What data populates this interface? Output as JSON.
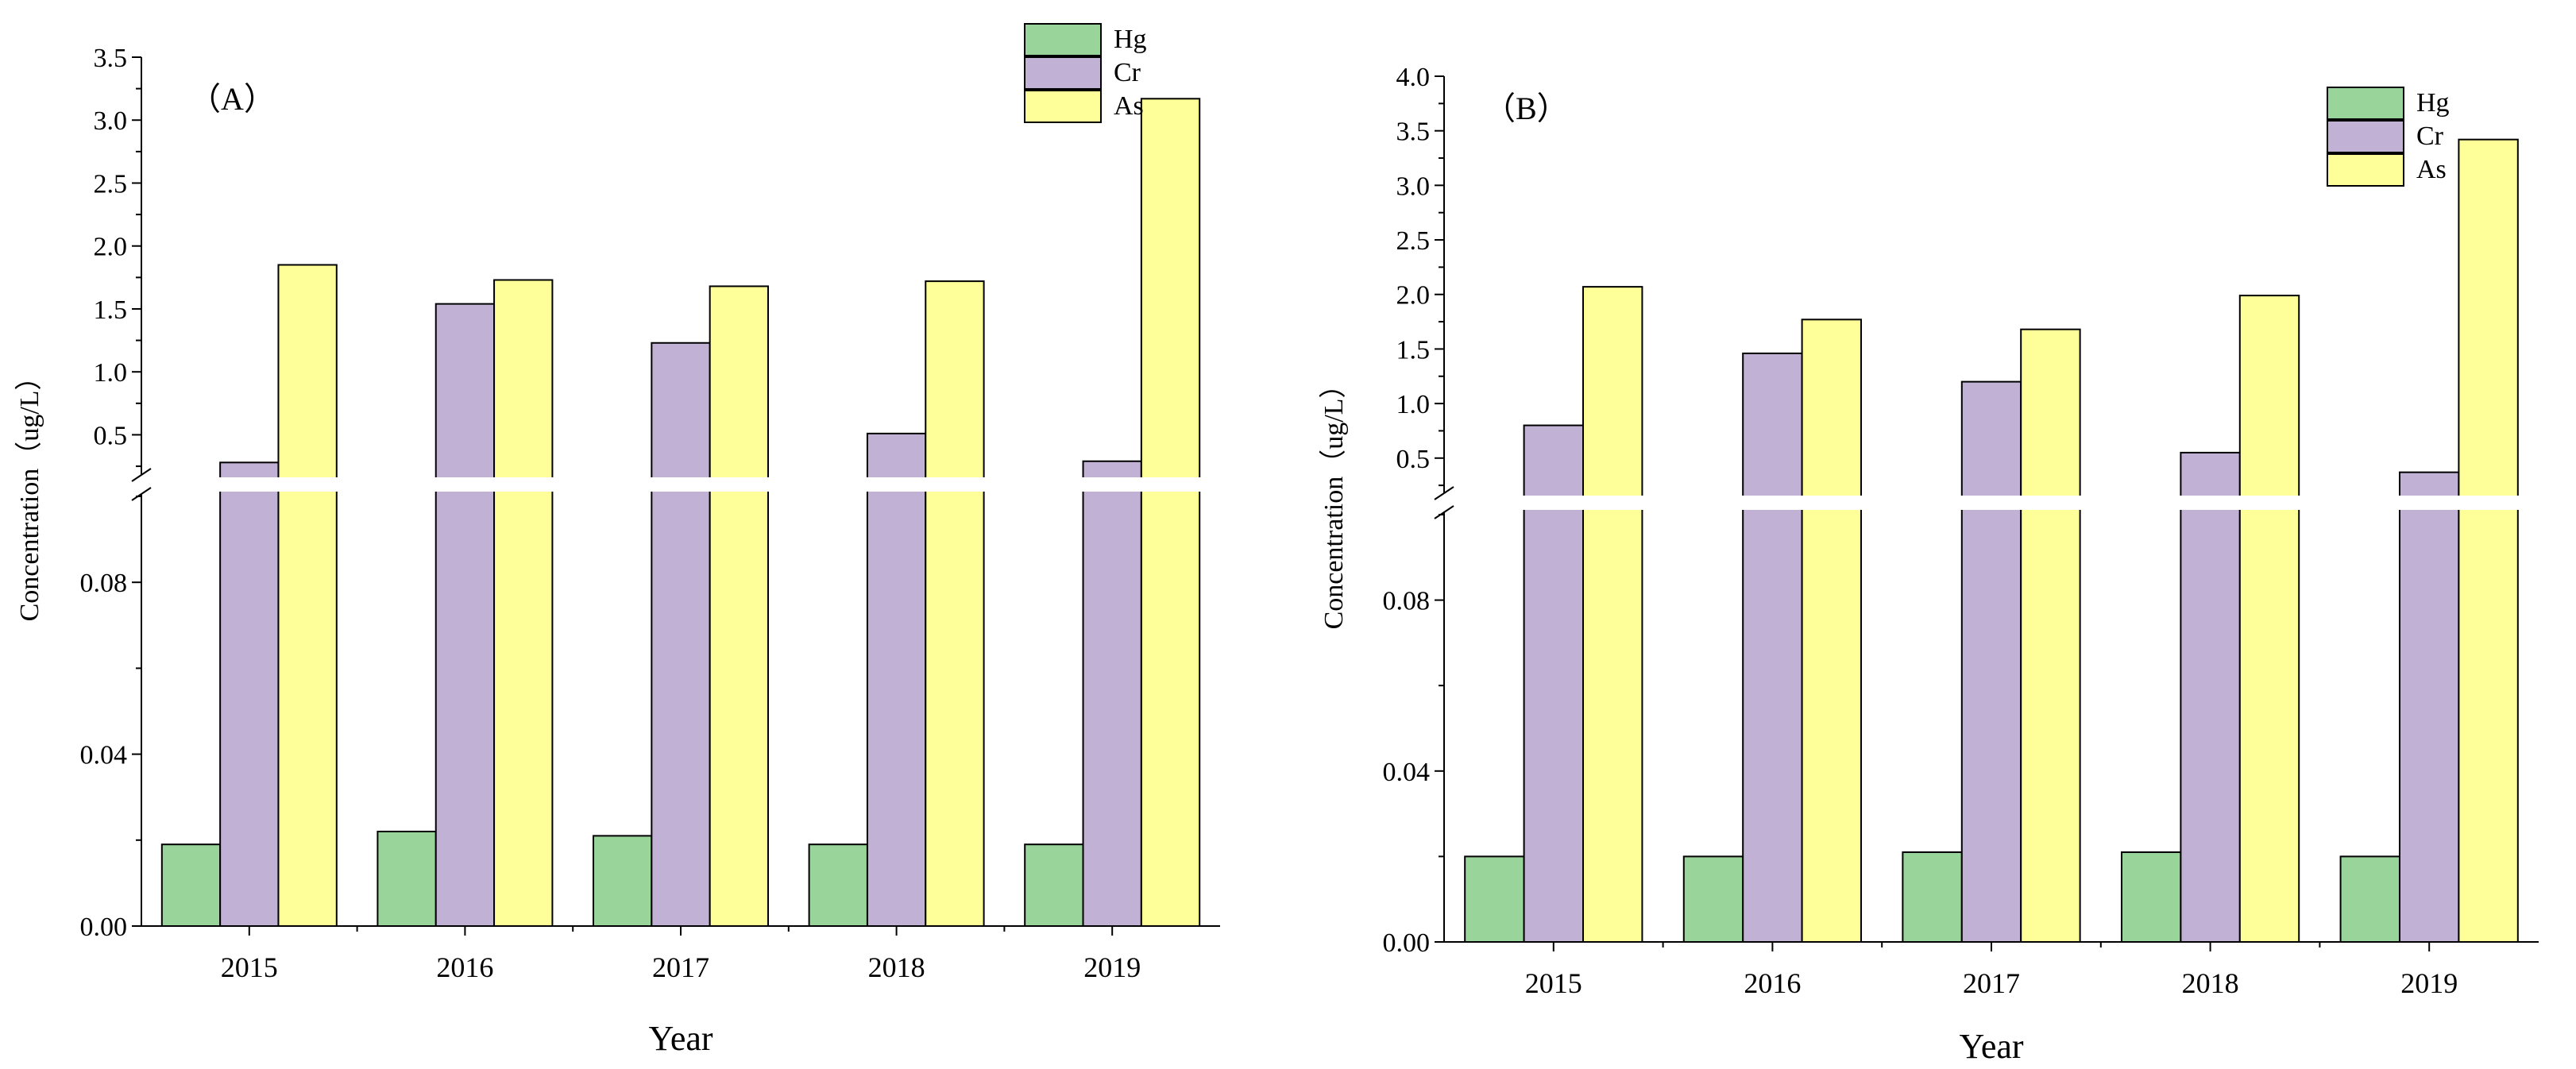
{
  "chart_data": [
    {
      "type": "bar",
      "panel": "（A）",
      "title": "",
      "xlabel": "Year",
      "ylabel": "Concentration（ug/L）",
      "categories": [
        "2015",
        "2016",
        "2017",
        "2018",
        "2019"
      ],
      "series": [
        {
          "name": "Hg",
          "values": [
            0.019,
            0.022,
            0.021,
            0.019,
            0.019
          ]
        },
        {
          "name": "Cr",
          "values": [
            0.28,
            1.54,
            1.23,
            0.51,
            0.29
          ]
        },
        {
          "name": "As",
          "values": [
            1.85,
            1.73,
            1.68,
            1.72,
            3.17
          ]
        }
      ],
      "y_axis_break": true,
      "lower_ylim": [
        0,
        0.1
      ],
      "lower_ticks": [
        "0.00",
        "0.04",
        "0.08"
      ],
      "upper_ylim": [
        0.2,
        3.5
      ],
      "upper_ticks": [
        "0.5",
        "1.0",
        "1.5",
        "2.0",
        "2.5",
        "3.0",
        "3.5"
      ],
      "legend": "top-right",
      "colors": {
        "Hg": "#99d59b",
        "Cr": "#c1b1d4",
        "As": "#ffff99"
      }
    },
    {
      "type": "bar",
      "panel": "（B）",
      "title": "",
      "xlabel": "Year",
      "ylabel": "Concentration（ug/L）",
      "categories": [
        "2015",
        "2016",
        "2017",
        "2018",
        "2019"
      ],
      "series": [
        {
          "name": "Hg",
          "values": [
            0.02,
            0.02,
            0.021,
            0.021,
            0.02
          ]
        },
        {
          "name": "Cr",
          "values": [
            0.8,
            1.46,
            1.2,
            0.55,
            0.37
          ]
        },
        {
          "name": "As",
          "values": [
            2.07,
            1.77,
            1.68,
            1.99,
            3.42
          ]
        }
      ],
      "y_axis_break": true,
      "lower_ylim": [
        0,
        0.1
      ],
      "lower_ticks": [
        "0.00",
        "0.04",
        "0.08"
      ],
      "upper_ylim": [
        0.2,
        4.0
      ],
      "upper_ticks": [
        "0.5",
        "1.0",
        "1.5",
        "2.0",
        "2.5",
        "3.0",
        "3.5",
        "4.0"
      ],
      "legend": "top-right",
      "colors": {
        "Hg": "#99d59b",
        "Cr": "#c1b1d4",
        "As": "#ffff99"
      }
    }
  ]
}
